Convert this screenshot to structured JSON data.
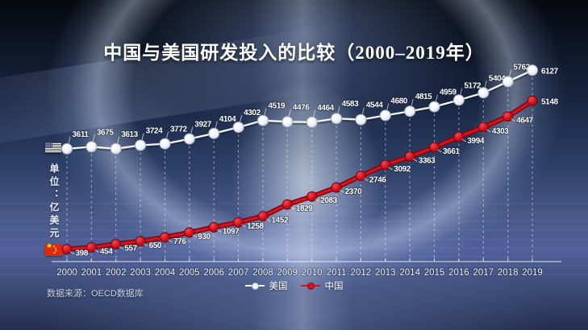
{
  "title": "中国与美国研发投入的比较（2000–2019年）",
  "unit_label": "单位：亿美元",
  "source_note": "数据来源：OECD数据库",
  "icons": {
    "us_flag": "us-flag",
    "cn_flag": "cn-flag",
    "us_line_marker": "white-dot-line-marker",
    "cn_line_marker": "red-dot-line-marker"
  },
  "colors": {
    "us_line": "#f4f6fa",
    "cn_line": "#d8121e",
    "background_base": "#2c3f66",
    "label_text": "#ffffff"
  },
  "chart_data": {
    "type": "line",
    "title": "中国与美国研发投入的比较（2000–2019年）",
    "unit": "亿美元",
    "x": [
      2000,
      2001,
      2002,
      2003,
      2004,
      2005,
      2006,
      2007,
      2008,
      2009,
      2010,
      2011,
      2012,
      2013,
      2014,
      2015,
      2016,
      2017,
      2018,
      2019
    ],
    "series": [
      {
        "name": "美国",
        "color": "#ffffff",
        "values": [
          3611,
          3675,
          3613,
          3724,
          3772,
          3927,
          4104,
          4302,
          4519,
          4476,
          4464,
          4583,
          4544,
          4680,
          4815,
          4959,
          5172,
          5404,
          5762,
          6127
        ]
      },
      {
        "name": "中国",
        "color": "#d8121e",
        "values": [
          398,
          454,
          557,
          650,
          776,
          930,
          1097,
          1258,
          1452,
          1829,
          2083,
          2370,
          2746,
          3092,
          3363,
          3661,
          3994,
          4303,
          4647,
          5148
        ]
      }
    ],
    "xlabel": "",
    "ylabel": "亿美元",
    "ylim": [
      0,
      6500
    ],
    "grid": "vertical-dashed-per-year",
    "y_axis_shown": false,
    "data_labels": "every-point",
    "legend_position": "bottom-center"
  }
}
